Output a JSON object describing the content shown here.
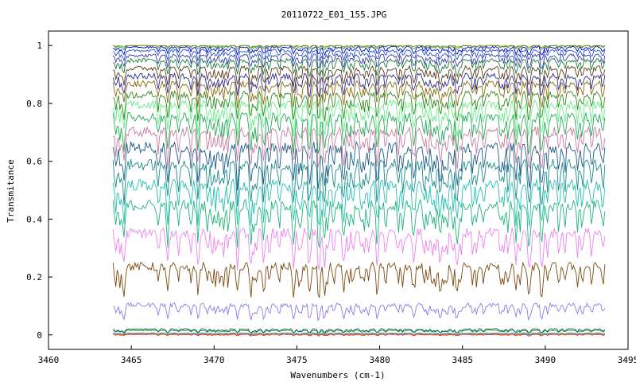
{
  "chart_data": {
    "type": "line",
    "title": "20110722_E01_155.JPG",
    "xlabel": "Wavenumbers (cm-1)",
    "ylabel": "Transmitance",
    "xlim": [
      3460,
      3495
    ],
    "ylim": [
      -0.05,
      1.05
    ],
    "x_ticks": [
      3460,
      3465,
      3470,
      3475,
      3480,
      3485,
      3490,
      3495
    ],
    "y_ticks": [
      0,
      0.2,
      0.4,
      0.6,
      0.8,
      1
    ],
    "x_tick_labels": [
      "3460",
      "3465",
      "3470",
      "3475",
      "3480",
      "3485",
      "3490",
      "3495"
    ],
    "y_tick_labels": [
      "0",
      "0.2",
      "0.4",
      "0.6",
      "0.8",
      "1"
    ],
    "grid": false,
    "legend": "none",
    "x_range_of_data": [
      3463.9,
      3493.6
    ],
    "series": [
      {
        "color": "#d62728",
        "base": 0.0,
        "amp": 0.003
      },
      {
        "color": "#ff7f0e",
        "base": 0.002,
        "amp": 0.003
      },
      {
        "color": "#1f77b4",
        "base": 0.004,
        "amp": 0.003
      },
      {
        "color": "#2ca02c",
        "base": 0.012,
        "amp": 0.006
      },
      {
        "color": "#0a5c5c",
        "base": 0.015,
        "amp": 0.008
      },
      {
        "color": "#8c7ae6",
        "base": 0.085,
        "amp": 0.03
      },
      {
        "color": "#7a4a10",
        "base": 0.2,
        "amp": 0.06
      },
      {
        "color": "#ee82ee",
        "base": 0.31,
        "amp": 0.07
      },
      {
        "color": "#1fb47a",
        "base": 0.4,
        "amp": 0.08
      },
      {
        "color": "#20c0b0",
        "base": 0.47,
        "amp": 0.08
      },
      {
        "color": "#1a8a8a",
        "base": 0.54,
        "amp": 0.08
      },
      {
        "color": "#1d5a8a",
        "base": 0.6,
        "amp": 0.08
      },
      {
        "color": "#c87aa0",
        "base": 0.66,
        "amp": 0.07
      },
      {
        "color": "#22aa55",
        "base": 0.71,
        "amp": 0.07
      },
      {
        "color": "#66ee88",
        "base": 0.76,
        "amp": 0.06
      },
      {
        "color": "#2d8a1a",
        "base": 0.8,
        "amp": 0.05
      },
      {
        "color": "#8a6a10",
        "base": 0.84,
        "amp": 0.045
      },
      {
        "color": "#2a2a8a",
        "base": 0.87,
        "amp": 0.04
      },
      {
        "color": "#5a3a1a",
        "base": 0.9,
        "amp": 0.035
      },
      {
        "color": "#1a7a3a",
        "base": 0.93,
        "amp": 0.03
      },
      {
        "color": "#3a3aaa",
        "base": 0.95,
        "amp": 0.025
      },
      {
        "color": "#2255cc",
        "base": 0.97,
        "amp": 0.02
      },
      {
        "color": "#0000cc",
        "base": 0.985,
        "amp": 0.015
      },
      {
        "color": "#22aa44",
        "base": 0.995,
        "amp": 0.008
      },
      {
        "color": "#888800",
        "base": 0.998,
        "amp": 0.004
      }
    ]
  }
}
